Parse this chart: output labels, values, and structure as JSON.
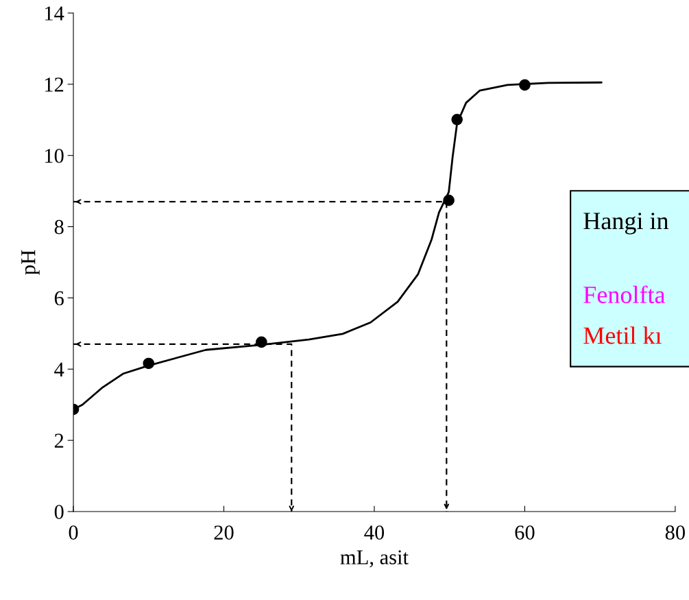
{
  "chart_data": {
    "type": "line",
    "xlabel": "mL, asit",
    "ylabel": "pH",
    "xlim": [
      0,
      80
    ],
    "ylim": [
      0,
      14
    ],
    "xticks": [
      0,
      20,
      40,
      60,
      80
    ],
    "yticks": [
      0,
      2,
      4,
      6,
      8,
      10,
      12,
      14
    ],
    "grid": false,
    "series": [
      {
        "type": "line",
        "color": "#000000",
        "marker": "none",
        "line_style": "solid",
        "x": [
          0,
          1.2,
          3.9,
          6.6,
          10,
          17.6,
          25,
          31.3,
          35.8,
          39.5,
          43.1,
          45.8,
          47.6,
          48.6,
          49.9,
          50.4,
          51,
          52.2,
          54,
          57.7,
          63.1,
          70.2
        ],
        "values": [
          2.87,
          3.0,
          3.49,
          3.87,
          4.1,
          4.54,
          4.68,
          4.83,
          4.99,
          5.31,
          5.89,
          6.66,
          7.63,
          8.4,
          8.97,
          9.94,
          10.9,
          11.48,
          11.82,
          11.98,
          12.04,
          12.05
        ]
      },
      {
        "type": "scatter",
        "color": "#000000",
        "marker": "circle",
        "x": [
          0,
          10,
          25,
          49.9,
          51,
          60
        ],
        "values": [
          2.87,
          4.16,
          4.76,
          8.74,
          11.01,
          11.98
        ]
      },
      {
        "type": "line",
        "color": "#000000",
        "marker": "none",
        "line_style": "dashed",
        "x": [
          0,
          29,
          29
        ],
        "values": [
          4.7,
          4.7,
          0
        ]
      },
      {
        "type": "line",
        "color": "#000000",
        "marker": "none",
        "line_style": "dashed",
        "x": [
          0,
          49.6,
          49.6
        ],
        "values": [
          8.7,
          8.7,
          0
        ]
      }
    ],
    "annotations": [
      "Hangi in",
      "Fenolfta",
      "Metil kı"
    ]
  }
}
